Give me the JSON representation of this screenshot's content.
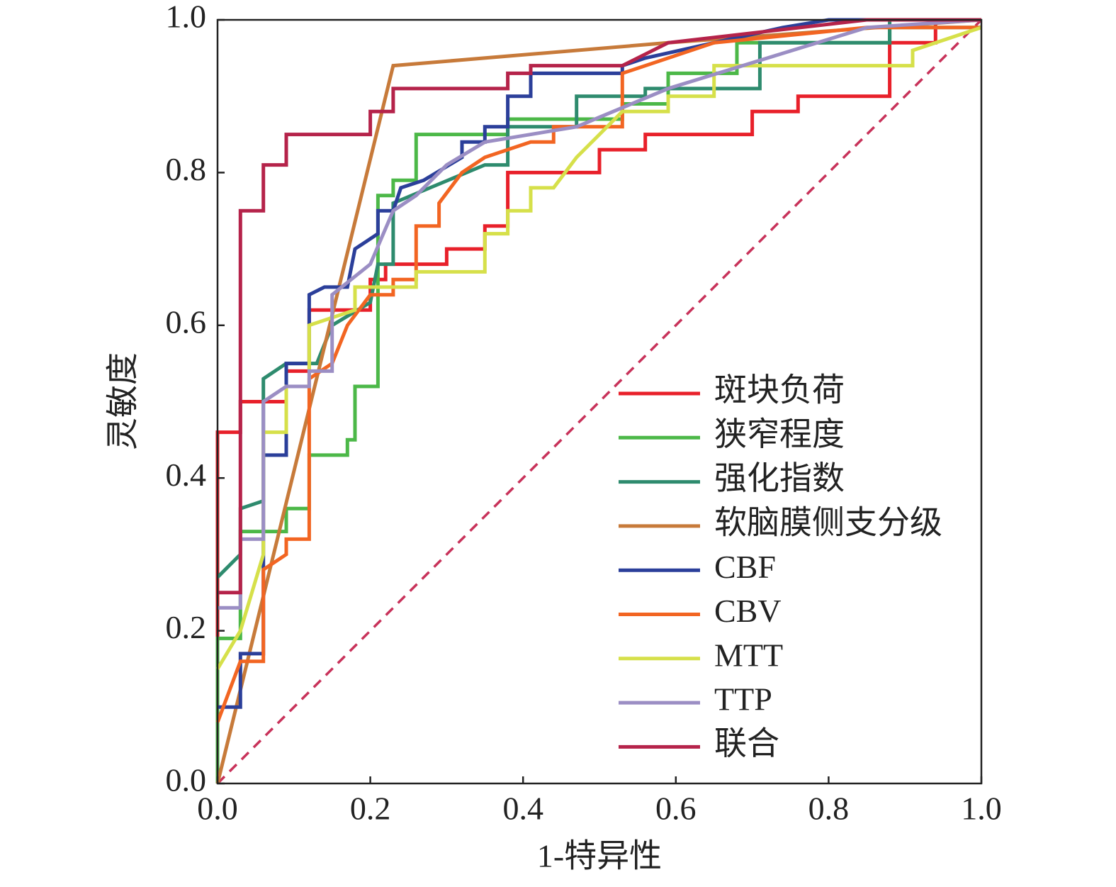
{
  "chart_data": {
    "type": "line",
    "x_label": "1-特异性",
    "y_label": "灵敏度",
    "xlim": [
      0,
      1
    ],
    "ylim": [
      0,
      1
    ],
    "xticks": [
      {
        "value": 0,
        "label": "0.0"
      },
      0.2,
      0.4,
      0.6,
      0.8,
      {
        "value": 1,
        "label": "1.0"
      }
    ],
    "yticks": [
      {
        "value": 0,
        "label": "0.0"
      },
      0.2,
      0.4,
      0.6,
      0.8,
      {
        "value": 1,
        "label": "1.0"
      }
    ],
    "legend": "lower right",
    "series": [
      {
        "name": "斑块负荷",
        "color": "#e8202a",
        "x": [
          0,
          0,
          0.03,
          0.03,
          0.09,
          0.09,
          0.12,
          0.12,
          0.2,
          0.2,
          0.22,
          0.22,
          0.3,
          0.3,
          0.35,
          0.35,
          0.38,
          0.38,
          0.5,
          0.5,
          0.56,
          0.56,
          0.7,
          0.7,
          0.76,
          0.76,
          0.88,
          0.88,
          0.94,
          0.94,
          1
        ],
        "values": [
          0,
          0.46,
          0.46,
          0.5,
          0.5,
          0.54,
          0.54,
          0.62,
          0.62,
          0.66,
          0.66,
          0.68,
          0.68,
          0.7,
          0.7,
          0.73,
          0.73,
          0.8,
          0.8,
          0.83,
          0.83,
          0.85,
          0.85,
          0.88,
          0.88,
          0.9,
          0.9,
          0.97,
          0.97,
          1,
          1
        ]
      },
      {
        "name": "狭窄程度",
        "color": "#4cb848",
        "x": [
          0,
          0,
          0.03,
          0.03,
          0.09,
          0.09,
          0.12,
          0.12,
          0.17,
          0.17,
          0.18,
          0.18,
          0.21,
          0.21,
          0.23,
          0.23,
          0.26,
          0.26,
          0.38,
          0.38,
          0.53,
          0.53,
          0.59,
          0.59,
          0.68,
          0.68,
          0.88,
          0.88,
          1
        ],
        "values": [
          0,
          0.19,
          0.19,
          0.33,
          0.33,
          0.36,
          0.36,
          0.43,
          0.43,
          0.45,
          0.45,
          0.52,
          0.52,
          0.77,
          0.77,
          0.79,
          0.79,
          0.85,
          0.85,
          0.87,
          0.87,
          0.89,
          0.89,
          0.93,
          0.93,
          0.97,
          0.97,
          0.99,
          0.99
        ]
      },
      {
        "name": "强化指数",
        "color": "#2e8b6e",
        "x": [
          0,
          0.03,
          0.03,
          0.06,
          0.06,
          0.09,
          0.13,
          0.15,
          0.2,
          0.21,
          0.23,
          0.23,
          0.35,
          0.38,
          0.38,
          0.47,
          0.47,
          0.56,
          0.56,
          0.71,
          0.71,
          0.88,
          0.88,
          1
        ],
        "values": [
          0.27,
          0.3,
          0.36,
          0.37,
          0.53,
          0.55,
          0.55,
          0.6,
          0.63,
          0.68,
          0.68,
          0.76,
          0.81,
          0.81,
          0.86,
          0.86,
          0.9,
          0.9,
          0.91,
          0.91,
          0.97,
          0.97,
          1,
          1
        ]
      },
      {
        "name": "软脑膜侧支分级",
        "color": "#c77a3a",
        "x": [
          0,
          0.23,
          0.59,
          1
        ],
        "values": [
          0,
          0.94,
          0.97,
          1
        ]
      },
      {
        "name": "CBF",
        "color": "#2b3f9a",
        "x": [
          0,
          0.03,
          0.03,
          0.06,
          0.06,
          0.09,
          0.09,
          0.12,
          0.12,
          0.14,
          0.17,
          0.18,
          0.21,
          0.21,
          0.23,
          0.24,
          0.27,
          0.32,
          0.32,
          0.35,
          0.35,
          0.38,
          0.38,
          0.41,
          0.41,
          0.53,
          0.53,
          0.56,
          0.65,
          0.74,
          0.8,
          1
        ],
        "values": [
          0.1,
          0.1,
          0.17,
          0.17,
          0.43,
          0.43,
          0.55,
          0.55,
          0.64,
          0.65,
          0.65,
          0.7,
          0.72,
          0.75,
          0.75,
          0.78,
          0.79,
          0.82,
          0.84,
          0.84,
          0.86,
          0.86,
          0.9,
          0.9,
          0.93,
          0.93,
          0.94,
          0.95,
          0.97,
          0.99,
          1,
          1
        ]
      },
      {
        "name": "CBV",
        "color": "#f26522",
        "x": [
          0,
          0.03,
          0.06,
          0.06,
          0.09,
          0.09,
          0.12,
          0.12,
          0.15,
          0.17,
          0.2,
          0.23,
          0.23,
          0.26,
          0.26,
          0.29,
          0.29,
          0.32,
          0.35,
          0.41,
          0.44,
          0.44,
          0.53,
          0.53,
          0.59,
          0.65,
          0.85,
          1
        ],
        "values": [
          0.08,
          0.16,
          0.16,
          0.28,
          0.3,
          0.32,
          0.32,
          0.53,
          0.55,
          0.6,
          0.64,
          0.64,
          0.66,
          0.66,
          0.73,
          0.73,
          0.76,
          0.8,
          0.82,
          0.84,
          0.84,
          0.86,
          0.86,
          0.93,
          0.95,
          0.97,
          0.99,
          0.99
        ]
      },
      {
        "name": "MTT",
        "color": "#d6e04a",
        "x": [
          0,
          0.03,
          0.06,
          0.06,
          0.09,
          0.09,
          0.12,
          0.12,
          0.18,
          0.18,
          0.26,
          0.26,
          0.35,
          0.35,
          0.38,
          0.38,
          0.41,
          0.41,
          0.44,
          0.47,
          0.5,
          0.53,
          0.59,
          0.59,
          0.65,
          0.65,
          0.91,
          0.91,
          1
        ],
        "values": [
          0.15,
          0.2,
          0.3,
          0.46,
          0.46,
          0.52,
          0.52,
          0.6,
          0.62,
          0.65,
          0.65,
          0.67,
          0.67,
          0.72,
          0.72,
          0.75,
          0.75,
          0.78,
          0.78,
          0.82,
          0.85,
          0.88,
          0.88,
          0.9,
          0.9,
          0.94,
          0.94,
          0.96,
          0.99
        ]
      },
      {
        "name": "TTP",
        "color": "#9b8ec4",
        "x": [
          0,
          0.03,
          0.03,
          0.06,
          0.06,
          0.09,
          0.12,
          0.12,
          0.15,
          0.15,
          0.2,
          0.23,
          0.26,
          0.3,
          0.35,
          0.47,
          0.59,
          0.85,
          1
        ],
        "values": [
          0.23,
          0.23,
          0.32,
          0.32,
          0.5,
          0.52,
          0.52,
          0.54,
          0.54,
          0.64,
          0.68,
          0.75,
          0.77,
          0.81,
          0.84,
          0.86,
          0.91,
          0.99,
          1
        ]
      },
      {
        "name": "联合",
        "color": "#b5234a",
        "x": [
          0,
          0.03,
          0.03,
          0.06,
          0.06,
          0.09,
          0.09,
          0.2,
          0.2,
          0.23,
          0.23,
          0.38,
          0.38,
          0.41,
          0.41,
          0.53,
          0.59,
          0.85,
          1
        ],
        "values": [
          0.25,
          0.25,
          0.75,
          0.75,
          0.81,
          0.81,
          0.85,
          0.85,
          0.88,
          0.88,
          0.91,
          0.91,
          0.93,
          0.93,
          0.94,
          0.94,
          0.97,
          1,
          1
        ]
      }
    ]
  }
}
